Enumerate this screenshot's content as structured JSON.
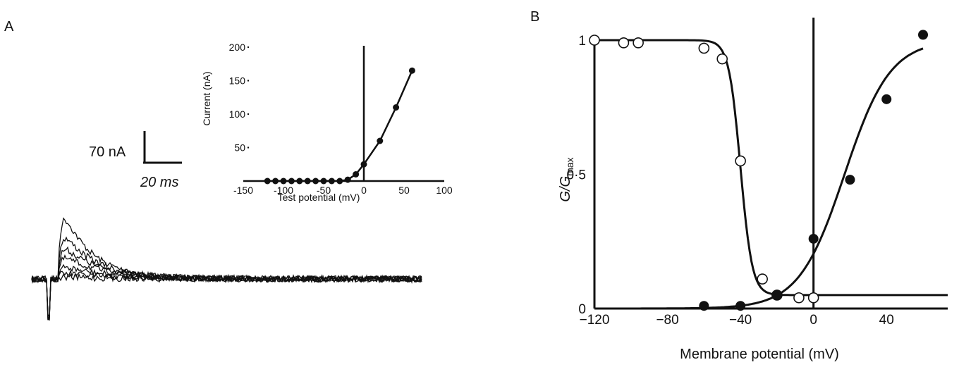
{
  "panels": {
    "a_label": "A",
    "b_label": "B"
  },
  "scale_bar": {
    "current_label": "70 nA",
    "time_label": "20 ms"
  },
  "colors": {
    "ink": "#111111",
    "background": "#ffffff"
  },
  "chart_data": [
    {
      "id": "A-trace",
      "type": "line",
      "title": "",
      "description_note": "",
      "series": [
        {
          "name": "",
          "peak_nA": 180
        },
        {
          "name": "",
          "peak_nA": 120
        },
        {
          "name": "",
          "peak_nA": 85
        },
        {
          "name": "",
          "peak_nA": 58
        },
        {
          "name": "",
          "peak_nA": 32
        },
        {
          "name": "",
          "peak_nA": 15
        },
        {
          "name": "",
          "peak_nA": 5
        }
      ],
      "scale": {
        "current_nA": 70,
        "time_ms": 20
      }
    },
    {
      "id": "A-inset",
      "type": "line",
      "title": "",
      "xlabel": "Test potential (mV)",
      "ylabel": "Current (nA)",
      "xlim": [
        -150,
        100
      ],
      "ylim": [
        0,
        200
      ],
      "xticks": [
        "-150",
        "-100",
        "-50",
        "0",
        "50",
        "100"
      ],
      "yticks": [
        "50",
        "100",
        "150",
        "200"
      ],
      "x": [
        -120,
        -110,
        -100,
        -90,
        -80,
        -70,
        -60,
        -50,
        -40,
        -30,
        -20,
        -10,
        0,
        20,
        40,
        60
      ],
      "y": [
        0,
        0,
        0,
        0,
        0,
        0,
        0,
        0,
        0,
        0,
        2,
        10,
        25,
        60,
        110,
        165
      ],
      "grid": false
    },
    {
      "id": "B",
      "type": "scatter",
      "title": "",
      "xlabel": "Membrane potential (mV)",
      "ylabel_main": "G/G",
      "ylabel_sub": "max",
      "xlim": [
        -120,
        60
      ],
      "ylim": [
        0,
        1
      ],
      "xticks": [
        "-120",
        "-80",
        "-40",
        "0",
        "40"
      ],
      "yticks": [
        "0",
        "0·5",
        "1"
      ],
      "grid": false,
      "series": [
        {
          "name": "",
          "marker": "open-circle",
          "x": [
            -120,
            -104,
            -96,
            -60,
            -50,
            -40,
            -28,
            -20,
            -8,
            0
          ],
          "y": [
            1.0,
            0.99,
            0.99,
            0.97,
            0.93,
            0.55,
            0.11,
            0.05,
            0.04,
            0.04
          ]
        },
        {
          "name": "",
          "marker": "filled-circle",
          "x": [
            -60,
            -40,
            -20,
            0,
            20,
            40,
            60
          ],
          "y": [
            0.01,
            0.01,
            0.05,
            0.26,
            0.48,
            0.78,
            1.02
          ]
        }
      ],
      "fits": [
        {
          "kind": "inactivation-boltzmann",
          "v_half": -40,
          "k": 3.2,
          "min": 0.05
        },
        {
          "kind": "activation-boltzmann",
          "v_half": 17,
          "k": 12.5
        }
      ]
    }
  ]
}
